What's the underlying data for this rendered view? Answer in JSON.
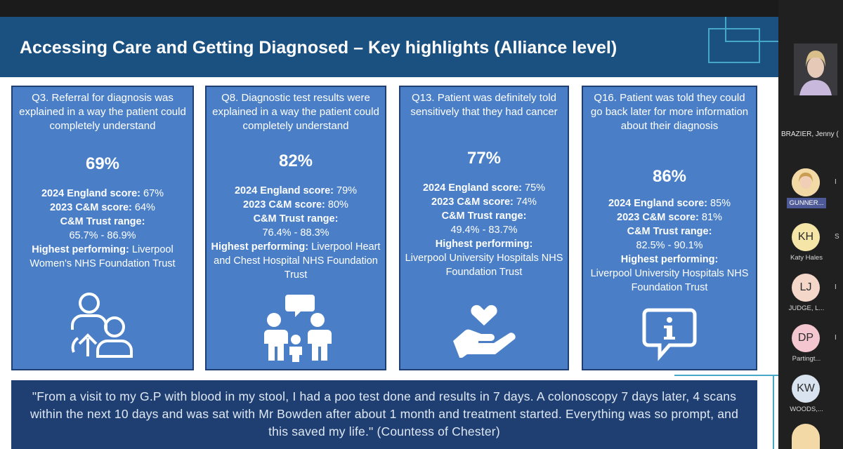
{
  "slide": {
    "title": "Accessing Care and Getting Diagnosed – Key highlights (Alliance level)",
    "cards": [
      {
        "question": "Q3. Referral for diagnosis was explained in a way the patient could completely understand",
        "percentage": "69%",
        "england_label": "2024 England score:",
        "england_value": "67%",
        "cm_label": "2023 C&M score:",
        "cm_value": "64%",
        "range_label": "C&M Trust range:",
        "range_value": "65.7% - 86.9%",
        "highest_label": "Highest performing:",
        "highest_value": "Liverpool Women's NHS Foundation Trust",
        "icon": "referral-people-icon"
      },
      {
        "question": "Q8. Diagnostic test results were explained in a way the patient could completely understand",
        "percentage": "82%",
        "england_label": "2024 England score:",
        "england_value": "79%",
        "cm_label": "2023 C&M score:",
        "cm_value": "80%",
        "range_label": "C&M Trust range:",
        "range_value": "76.4% - 88.3%",
        "highest_label": "Highest performing:",
        "highest_value": "Liverpool Heart and Chest Hospital NHS Foundation Trust",
        "icon": "conversation-people-icon"
      },
      {
        "question": "Q13. Patient was definitely told sensitively that they had cancer",
        "percentage": "77%",
        "england_label": "2024 England score:",
        "england_value": "75%",
        "cm_label": "2023 C&M score:",
        "cm_value": "74%",
        "range_label": "C&M Trust range:",
        "range_value": "49.4% - 83.7%",
        "highest_label": "Highest performing:",
        "highest_value": "Liverpool University Hospitals NHS Foundation Trust",
        "icon": "heart-hand-icon"
      },
      {
        "question": "Q16. Patient was told they could go back later for more information about their diagnosis",
        "percentage": "86%",
        "england_label": "2024 England score:",
        "england_value": "85%",
        "cm_label": "2023 C&M score:",
        "cm_value": "81%",
        "range_label": "C&M Trust range:",
        "range_value": "82.5% - 90.1%",
        "highest_label": "Highest performing:",
        "highest_value": "Liverpool University Hospitals NHS Foundation Trust",
        "icon": "info-speech-icon"
      }
    ],
    "quote": "\"From a visit to my G.P with blood in my stool, I had a poo test done and results in 7 days. A colonoscopy 7 days later, 4 scans within the next 10 days and was sat with Mr Bowden after about 1 month and treatment started. Everything was so prompt, and this saved my life.\" (Countess of Chester)"
  },
  "meeting": {
    "main_speaker_name": "BRAZIER, Jenny (",
    "participants": [
      {
        "initials": "",
        "name": "GUNNER...",
        "avatar_color": "#f2d9a6",
        "photo": true,
        "highlight": true
      },
      {
        "initials": "KH",
        "name": "Katy Hales",
        "avatar_color": "#f5e6a8"
      },
      {
        "initials": "LJ",
        "name": "JUDGE, L...",
        "avatar_color": "#f4d7c9"
      },
      {
        "initials": "DP",
        "name": "Partingt...",
        "avatar_color": "#f4c6cf"
      },
      {
        "initials": "KW",
        "name": "WOODS,...",
        "avatar_color": "#d9e3ef"
      }
    ],
    "side_marks": [
      "I",
      "S",
      "I",
      "I"
    ]
  }
}
